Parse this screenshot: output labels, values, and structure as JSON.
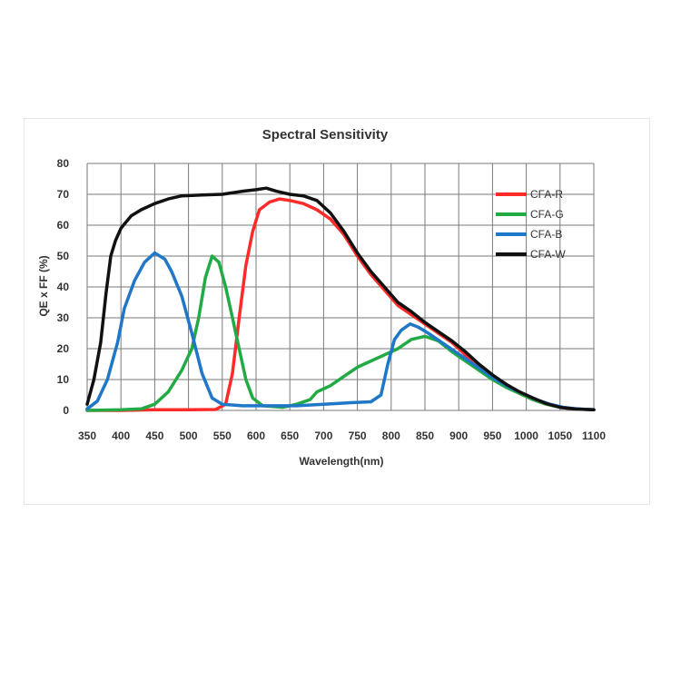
{
  "chart_data": {
    "type": "line",
    "title": "Spectral Sensitivity",
    "xlabel": "Wavelength(nm)",
    "ylabel": "QE x FF (%)",
    "xlim": [
      350,
      1100
    ],
    "ylim": [
      0,
      80
    ],
    "xticks": [
      350,
      400,
      450,
      500,
      550,
      600,
      650,
      700,
      750,
      800,
      850,
      900,
      950,
      1000,
      1050,
      1100
    ],
    "yticks": [
      0,
      10,
      20,
      30,
      40,
      50,
      60,
      70,
      80
    ],
    "grid": true,
    "legend_position": "top-right",
    "series": [
      {
        "name": "CFA-R",
        "color": "#ff2a2a",
        "points": [
          [
            350,
            0
          ],
          [
            400,
            0
          ],
          [
            450,
            0.2
          ],
          [
            500,
            0.2
          ],
          [
            540,
            0.3
          ],
          [
            555,
            2
          ],
          [
            565,
            12
          ],
          [
            575,
            30
          ],
          [
            585,
            47
          ],
          [
            595,
            58
          ],
          [
            605,
            65
          ],
          [
            620,
            67.5
          ],
          [
            635,
            68.5
          ],
          [
            650,
            68
          ],
          [
            670,
            67
          ],
          [
            690,
            65
          ],
          [
            710,
            62
          ],
          [
            730,
            57
          ],
          [
            750,
            50
          ],
          [
            770,
            44
          ],
          [
            790,
            39
          ],
          [
            810,
            34
          ],
          [
            830,
            31
          ],
          [
            850,
            28
          ],
          [
            870,
            25
          ],
          [
            890,
            22
          ],
          [
            910,
            18
          ],
          [
            930,
            14.5
          ],
          [
            950,
            11
          ],
          [
            970,
            8
          ],
          [
            990,
            5.5
          ],
          [
            1010,
            3.5
          ],
          [
            1030,
            2
          ],
          [
            1050,
            1
          ],
          [
            1070,
            0.5
          ],
          [
            1100,
            0.2
          ]
        ]
      },
      {
        "name": "CFA-G",
        "color": "#22aa44",
        "points": [
          [
            350,
            0
          ],
          [
            400,
            0.2
          ],
          [
            430,
            0.5
          ],
          [
            450,
            2
          ],
          [
            470,
            6
          ],
          [
            490,
            13
          ],
          [
            505,
            20
          ],
          [
            515,
            30
          ],
          [
            525,
            43
          ],
          [
            535,
            50
          ],
          [
            545,
            48
          ],
          [
            555,
            40
          ],
          [
            565,
            30
          ],
          [
            575,
            20
          ],
          [
            585,
            10
          ],
          [
            595,
            4
          ],
          [
            610,
            1.5
          ],
          [
            640,
            1
          ],
          [
            660,
            2
          ],
          [
            680,
            3.5
          ],
          [
            690,
            6
          ],
          [
            710,
            8
          ],
          [
            730,
            11
          ],
          [
            750,
            14
          ],
          [
            770,
            16
          ],
          [
            790,
            18
          ],
          [
            810,
            20
          ],
          [
            830,
            23
          ],
          [
            850,
            24
          ],
          [
            870,
            22.5
          ],
          [
            890,
            19
          ],
          [
            910,
            16
          ],
          [
            930,
            13
          ],
          [
            950,
            10
          ],
          [
            970,
            7.5
          ],
          [
            990,
            5.5
          ],
          [
            1010,
            3.5
          ],
          [
            1030,
            2
          ],
          [
            1050,
            1
          ],
          [
            1070,
            0.5
          ],
          [
            1100,
            0.2
          ]
        ]
      },
      {
        "name": "CFA-B",
        "color": "#1f77c8",
        "points": [
          [
            350,
            0.5
          ],
          [
            365,
            3
          ],
          [
            380,
            10
          ],
          [
            395,
            22
          ],
          [
            405,
            33
          ],
          [
            420,
            42
          ],
          [
            435,
            48
          ],
          [
            450,
            51
          ],
          [
            465,
            49
          ],
          [
            475,
            45
          ],
          [
            490,
            37
          ],
          [
            505,
            25
          ],
          [
            520,
            12
          ],
          [
            535,
            4
          ],
          [
            550,
            2
          ],
          [
            580,
            1.5
          ],
          [
            620,
            1.5
          ],
          [
            660,
            1.5
          ],
          [
            700,
            2
          ],
          [
            740,
            2.5
          ],
          [
            770,
            2.8
          ],
          [
            785,
            5
          ],
          [
            795,
            15
          ],
          [
            805,
            23
          ],
          [
            815,
            26
          ],
          [
            828,
            28
          ],
          [
            840,
            27
          ],
          [
            855,
            25
          ],
          [
            875,
            22
          ],
          [
            895,
            19
          ],
          [
            915,
            16
          ],
          [
            935,
            13
          ],
          [
            955,
            10
          ],
          [
            975,
            7.5
          ],
          [
            995,
            5.5
          ],
          [
            1015,
            3.5
          ],
          [
            1035,
            2
          ],
          [
            1055,
            1
          ],
          [
            1075,
            0.5
          ],
          [
            1100,
            0.2
          ]
        ]
      },
      {
        "name": "CFA-W",
        "color": "#111111",
        "points": [
          [
            350,
            2
          ],
          [
            360,
            10
          ],
          [
            370,
            22
          ],
          [
            378,
            38
          ],
          [
            385,
            50
          ],
          [
            392,
            55
          ],
          [
            400,
            59
          ],
          [
            415,
            63
          ],
          [
            430,
            65
          ],
          [
            450,
            67
          ],
          [
            470,
            68.5
          ],
          [
            490,
            69.5
          ],
          [
            520,
            69.8
          ],
          [
            550,
            70
          ],
          [
            580,
            71
          ],
          [
            600,
            71.5
          ],
          [
            615,
            72
          ],
          [
            630,
            71
          ],
          [
            650,
            70
          ],
          [
            670,
            69.5
          ],
          [
            690,
            68
          ],
          [
            710,
            64
          ],
          [
            730,
            58
          ],
          [
            750,
            51
          ],
          [
            770,
            45
          ],
          [
            790,
            40
          ],
          [
            810,
            35
          ],
          [
            830,
            32
          ],
          [
            850,
            28.5
          ],
          [
            870,
            25.5
          ],
          [
            890,
            22.5
          ],
          [
            910,
            19
          ],
          [
            930,
            15
          ],
          [
            950,
            11.5
          ],
          [
            970,
            8.5
          ],
          [
            990,
            6
          ],
          [
            1010,
            4
          ],
          [
            1030,
            2.2
          ],
          [
            1050,
            1
          ],
          [
            1070,
            0.5
          ],
          [
            1100,
            0.2
          ]
        ]
      }
    ]
  }
}
